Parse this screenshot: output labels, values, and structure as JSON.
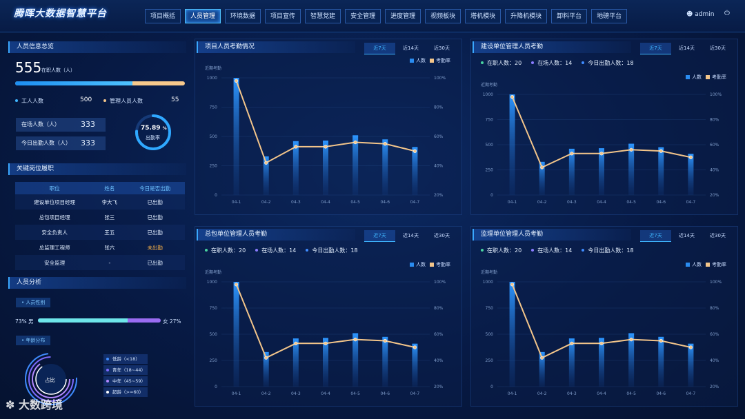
{
  "header": {
    "title": "腾晖大数据智慧平台",
    "nav": [
      "项目概括",
      "人员管理",
      "环境数据",
      "项目宣传",
      "智慧党建",
      "安全管理",
      "进度管理",
      "视频板块",
      "塔机模块",
      "升降机模块",
      "卸料平台",
      "地磅平台"
    ],
    "active_nav": "人员管理",
    "user": "admin"
  },
  "overview": {
    "title": "人员信息总览",
    "total": "555",
    "total_label": "在职人数（人）",
    "workers_label": "工人人数",
    "workers": "500",
    "managers_label": "管理人员人数",
    "managers": "55",
    "onsite_label": "在场人数（人）",
    "onsite": "333",
    "today_label": "今日出勤人数（人）",
    "today": "333",
    "rate": "75.89",
    "rate_unit": "%",
    "rate_value": 75.89,
    "rate_label": "出勤率"
  },
  "key_posts": {
    "title": "关键岗位履职",
    "headers": [
      "职位",
      "姓名",
      "今日是否出勤"
    ],
    "rows": [
      [
        "建设单位项目经理",
        "李大飞",
        "已出勤"
      ],
      [
        "总包项目经理",
        "张三",
        "已出勤"
      ],
      [
        "安全负责人",
        "王五",
        "已出勤"
      ],
      [
        "总监理工程师",
        "张六",
        "未出勤"
      ],
      [
        "安全监理",
        "-",
        "已出勤"
      ]
    ]
  },
  "analysis": {
    "title": "人员分析",
    "gender_chip": "人员性别",
    "male_pct": "73%",
    "male_label": "男",
    "female_label": "女",
    "female_pct": "27%",
    "male_value": 73,
    "age_chip": "年龄分布",
    "ring_label": "占比",
    "ages": [
      "低龄（<18）",
      "青年（18~44）",
      "中年（45~59）",
      "超龄（>=60）"
    ],
    "age_colors": [
      "#3f8cff",
      "#7f6bff",
      "#b388ff",
      "#ffffff"
    ]
  },
  "tabs": [
    "近7天",
    "近14天",
    "近30天"
  ],
  "legend": {
    "count": "人数",
    "rate": "考勤率"
  },
  "colors": {
    "bar": "#2a8cf0",
    "line": "#f3c58a",
    "accent": "#3fb6ff"
  },
  "panels": [
    {
      "title": "项目人员考勤情况",
      "stats": null
    },
    {
      "title": "建设单位管理人员考勤",
      "stats": [
        "在职人数：20",
        "在场人数：14",
        "今日出勤人数：18"
      ]
    },
    {
      "title": "总包单位管理人员考勤",
      "stats": [
        "在职人数：20",
        "在场人数：14",
        "今日出勤人数：18"
      ]
    },
    {
      "title": "监理单位管理人员考勤",
      "stats": [
        "在职人数：20",
        "在场人数：14",
        "今日出勤人数：18"
      ]
    }
  ],
  "chart_data": {
    "type": "bar",
    "subtitle": "近期考勤",
    "categories": [
      "04-1",
      "04-2",
      "04-3",
      "04-4",
      "04-5",
      "04-6",
      "04-7"
    ],
    "series": [
      {
        "name": "人数",
        "type": "bar",
        "axis": "left",
        "values": [
          1000,
          330,
          460,
          465,
          510,
          475,
          410
        ]
      },
      {
        "name": "考勤率",
        "type": "line",
        "axis": "right",
        "values": [
          98,
          42,
          53,
          53,
          56,
          55,
          50
        ]
      }
    ],
    "y_left": {
      "range": [
        0,
        1000
      ],
      "ticks": [
        "0",
        "250",
        "500",
        "750",
        "1000"
      ]
    },
    "y_right": {
      "range": [
        20,
        100
      ],
      "ticks": [
        "20%",
        "40%",
        "60%",
        "80%",
        "100%"
      ]
    }
  }
}
